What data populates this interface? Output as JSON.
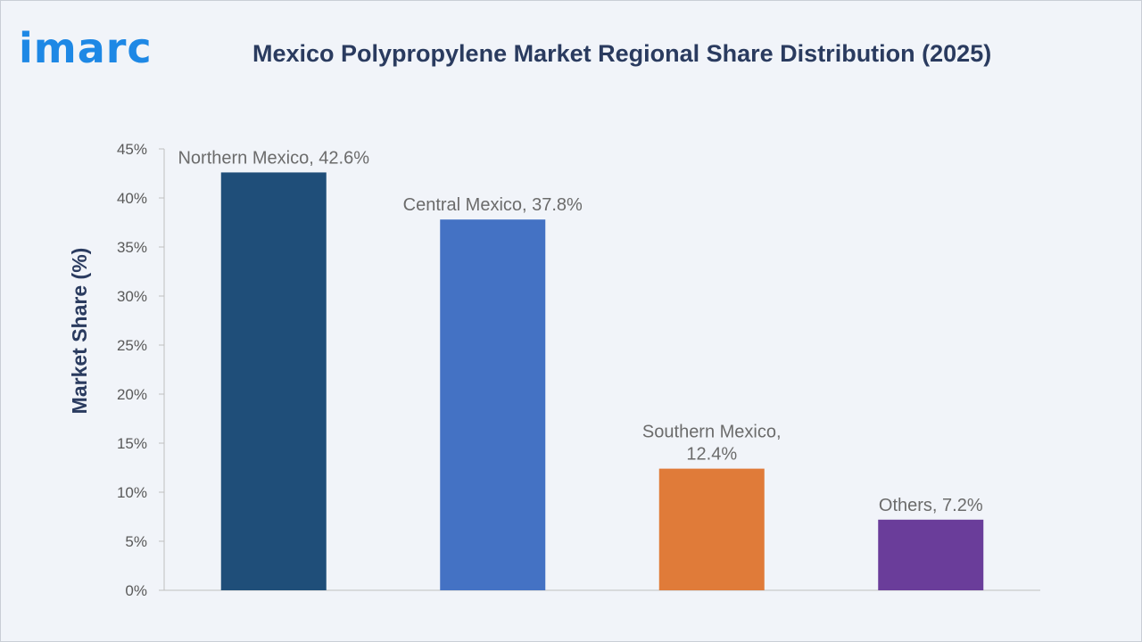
{
  "header": {
    "logo_text": "imarc",
    "title": "Mexico Polypropylene Market Regional Share Distribution (2025)"
  },
  "chart_data": {
    "type": "bar",
    "title": "Mexico Polypropylene Market Regional Share Distribution (2025)",
    "xlabel": "",
    "ylabel": "Market Share (%)",
    "ylim": [
      0,
      45
    ],
    "yticks": [
      0,
      5,
      10,
      15,
      20,
      25,
      30,
      35,
      40,
      45
    ],
    "ytick_labels": [
      "0%",
      "5%",
      "10%",
      "15%",
      "20%",
      "25%",
      "30%",
      "35%",
      "40%",
      "45%"
    ],
    "grid": false,
    "categories": [
      "Northern Mexico",
      "Central Mexico",
      "Southern Mexico",
      "Others"
    ],
    "values": [
      42.6,
      37.8,
      12.4,
      7.2
    ],
    "data_labels": [
      [
        "Northern Mexico, 42.6%"
      ],
      [
        "Central Mexico, 37.8%"
      ],
      [
        "Southern Mexico,",
        "12.4%"
      ],
      [
        "Others, 7.2%"
      ]
    ],
    "colors": [
      "#1f4e79",
      "#4472c4",
      "#e07b39",
      "#6a3d9a"
    ]
  }
}
